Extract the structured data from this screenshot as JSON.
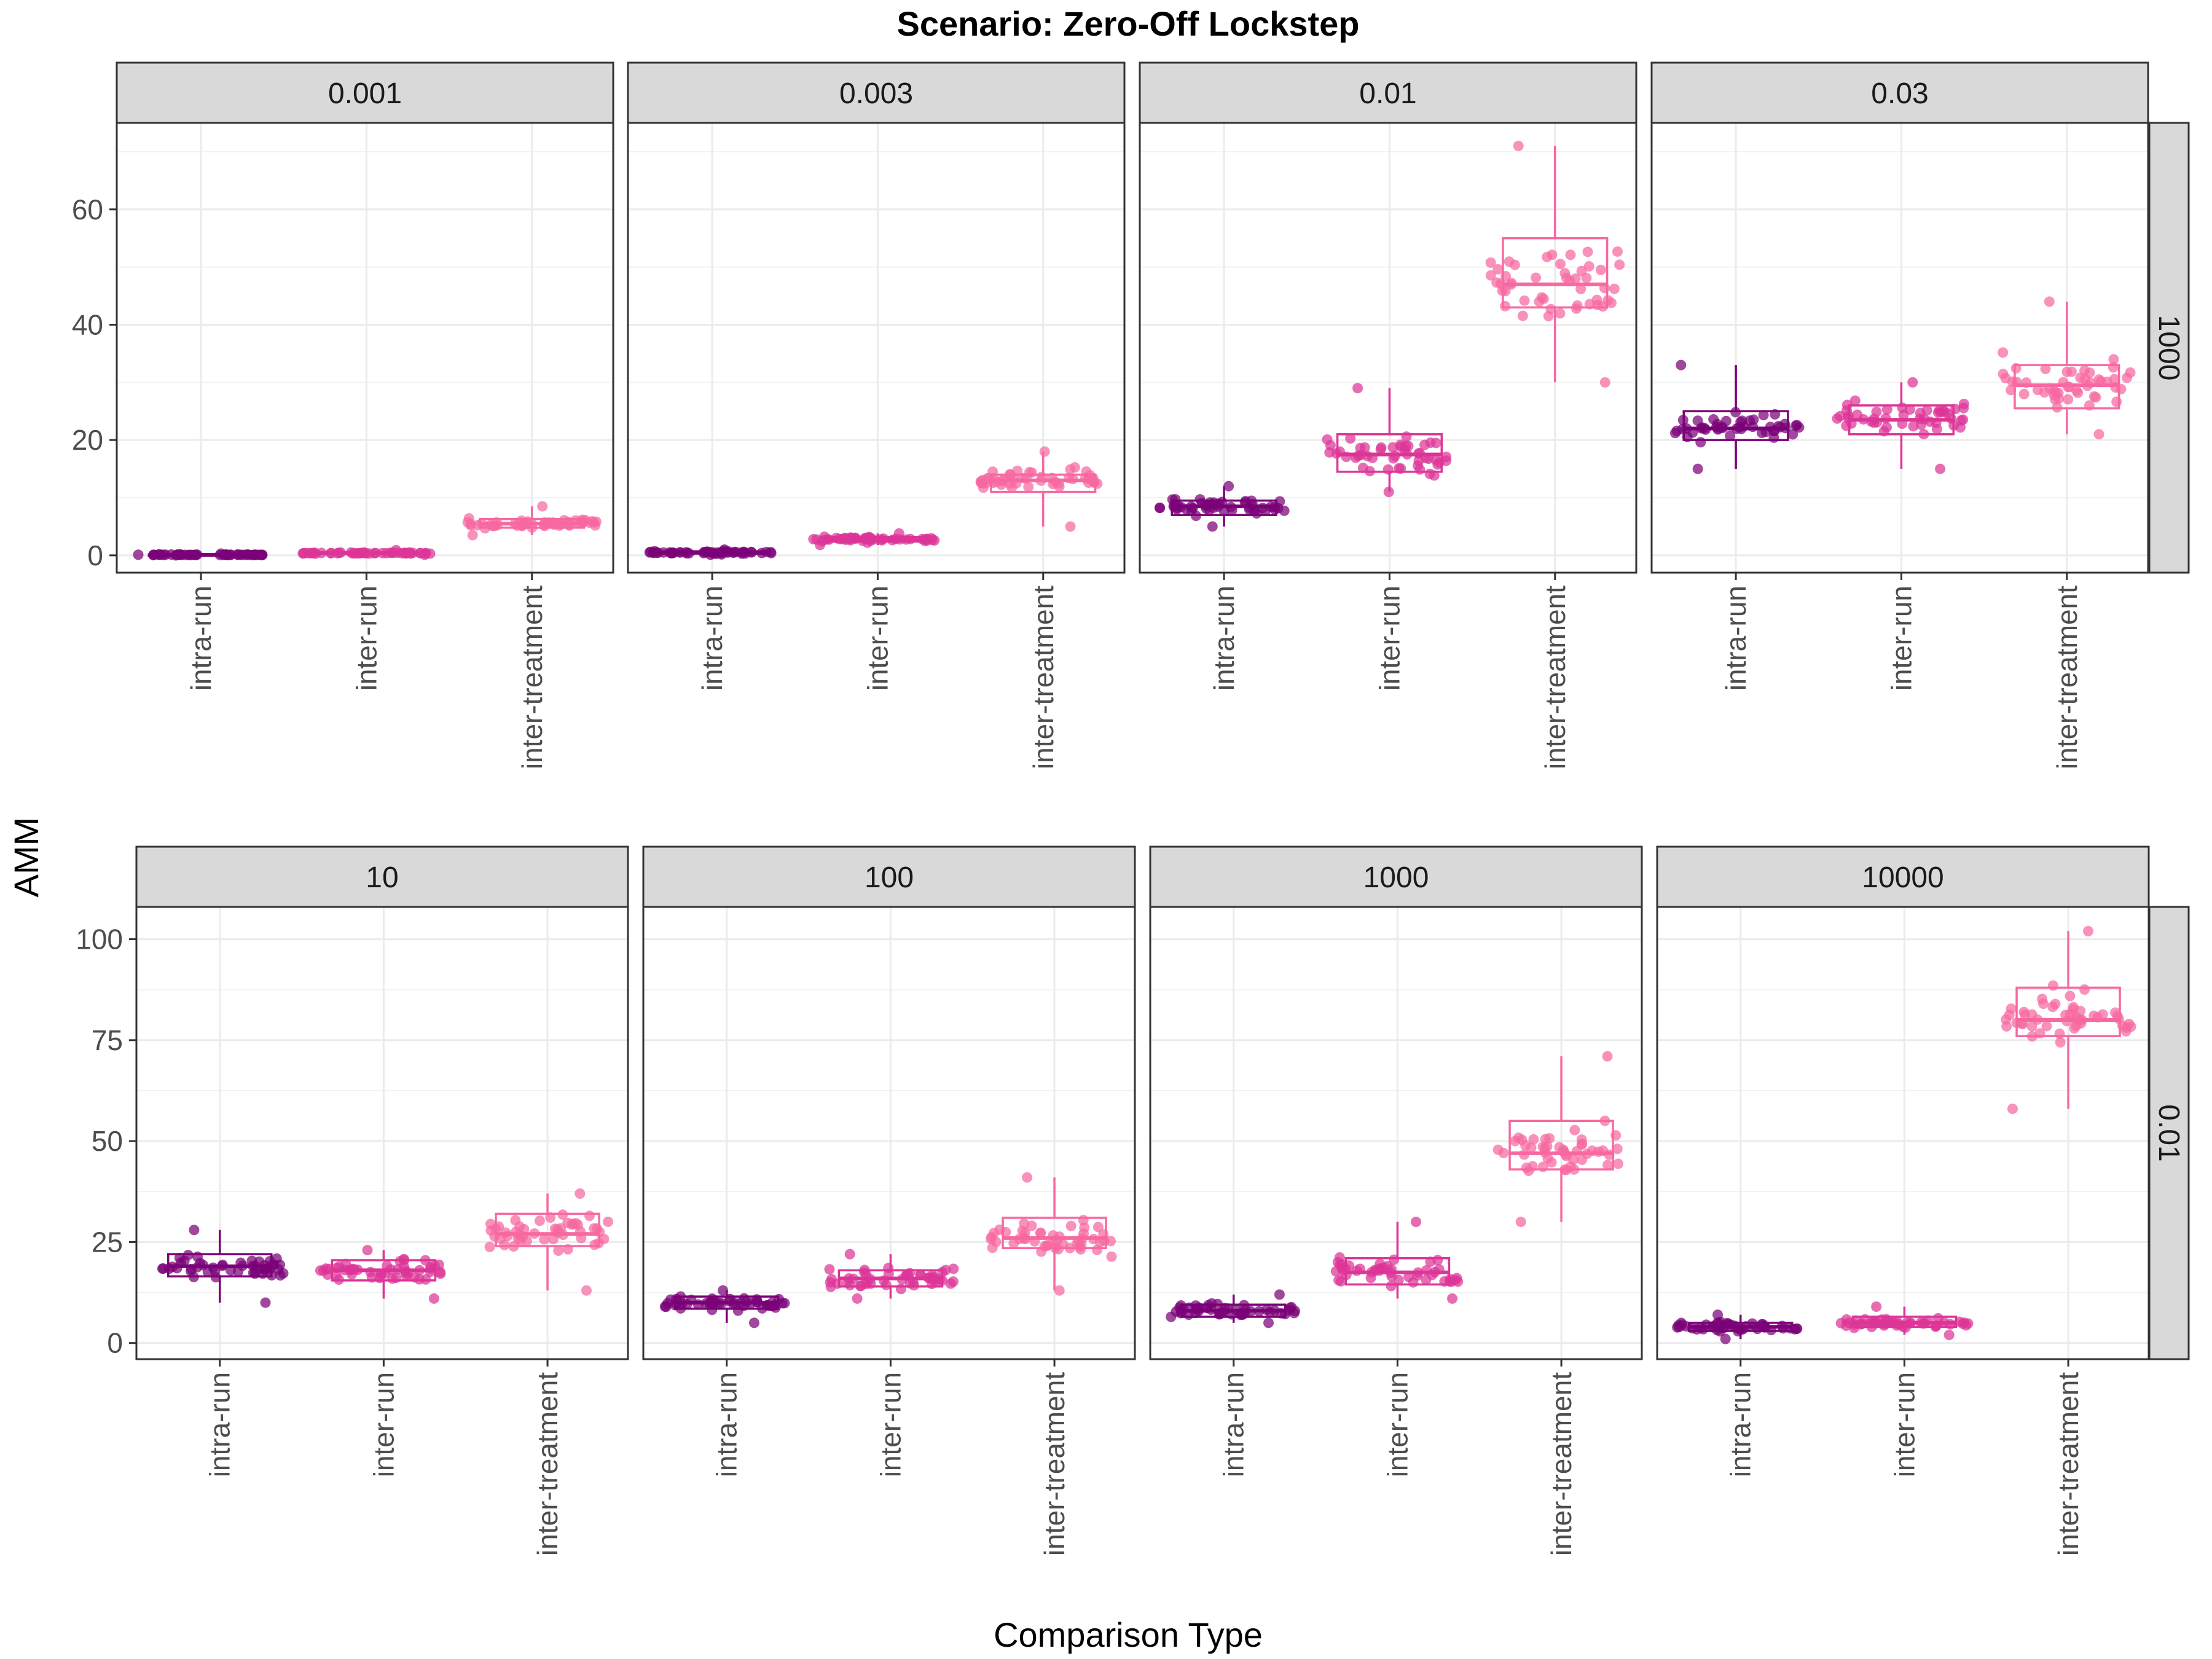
{
  "chart_data": {
    "type": "boxplot-jitter",
    "title": "Scenario: Zero-Off Lockstep",
    "xlabel": "Comparison Type",
    "ylabel": "AMM",
    "categories": [
      "intra-run",
      "inter-run",
      "inter-treatment"
    ],
    "category_colors": {
      "intra-run": "#7a0177",
      "inter-run": "#dd3497",
      "inter-treatment": "#f768a1"
    },
    "grid": true,
    "legend": "none",
    "rows": [
      {
        "strip_label": "1000",
        "ylim": [
          -3,
          75
        ],
        "yticks": [
          0,
          20,
          40,
          60
        ],
        "panels": [
          {
            "strip_label": "0.001",
            "boxes": [
              {
                "category": "intra-run",
                "min": 0,
                "q1": 0.05,
                "median": 0.1,
                "q3": 0.15,
                "max": 0.3
              },
              {
                "category": "inter-run",
                "min": 0.1,
                "q1": 0.3,
                "median": 0.4,
                "q3": 0.5,
                "max": 0.9
              },
              {
                "category": "inter-treatment",
                "min": 3.5,
                "q1": 4.8,
                "median": 5.5,
                "q3": 6.3,
                "max": 8.5
              }
            ]
          },
          {
            "strip_label": "0.003",
            "boxes": [
              {
                "category": "intra-run",
                "min": 0.1,
                "q1": 0.3,
                "median": 0.5,
                "q3": 0.7,
                "max": 1.0
              },
              {
                "category": "inter-run",
                "min": 1.8,
                "q1": 2.4,
                "median": 2.8,
                "q3": 3.2,
                "max": 3.8
              },
              {
                "category": "inter-treatment",
                "min": 5,
                "q1": 11,
                "median": 13,
                "q3": 14,
                "max": 18
              }
            ]
          },
          {
            "strip_label": "0.01",
            "boxes": [
              {
                "category": "intra-run",
                "min": 5,
                "q1": 7,
                "median": 8.5,
                "q3": 9.5,
                "max": 12
              },
              {
                "category": "inter-run",
                "min": 11,
                "q1": 14.5,
                "median": 17.5,
                "q3": 21,
                "max": 29
              },
              {
                "category": "inter-treatment",
                "min": 30,
                "q1": 43,
                "median": 47,
                "q3": 55,
                "max": 71
              }
            ]
          },
          {
            "strip_label": "0.03",
            "boxes": [
              {
                "category": "intra-run",
                "min": 15,
                "q1": 20,
                "median": 22,
                "q3": 25,
                "max": 33
              },
              {
                "category": "inter-run",
                "min": 15,
                "q1": 21,
                "median": 23.5,
                "q3": 26,
                "max": 30
              },
              {
                "category": "inter-treatment",
                "min": 21,
                "q1": 25.5,
                "median": 29.5,
                "q3": 33,
                "max": 44
              }
            ]
          }
        ]
      },
      {
        "strip_label": "0.01",
        "ylim": [
          -4,
          108
        ],
        "yticks": [
          0,
          25,
          50,
          75,
          100
        ],
        "panels": [
          {
            "strip_label": "10",
            "boxes": [
              {
                "category": "intra-run",
                "min": 10,
                "q1": 16.5,
                "median": 19,
                "q3": 22,
                "max": 28
              },
              {
                "category": "inter-run",
                "min": 11,
                "q1": 15.5,
                "median": 18,
                "q3": 20.5,
                "max": 23
              },
              {
                "category": "inter-treatment",
                "min": 13,
                "q1": 24,
                "median": 27,
                "q3": 32,
                "max": 37
              }
            ]
          },
          {
            "strip_label": "100",
            "boxes": [
              {
                "category": "intra-run",
                "min": 5,
                "q1": 8.5,
                "median": 10,
                "q3": 11.5,
                "max": 13
              },
              {
                "category": "inter-run",
                "min": 11,
                "q1": 14,
                "median": 16,
                "q3": 18,
                "max": 22
              },
              {
                "category": "inter-treatment",
                "min": 13,
                "q1": 23.5,
                "median": 26,
                "q3": 31,
                "max": 41
              }
            ]
          },
          {
            "strip_label": "1000",
            "boxes": [
              {
                "category": "intra-run",
                "min": 5,
                "q1": 6.5,
                "median": 8,
                "q3": 9.5,
                "max": 12
              },
              {
                "category": "inter-run",
                "min": 11,
                "q1": 14.5,
                "median": 17.5,
                "q3": 21,
                "max": 30
              },
              {
                "category": "inter-treatment",
                "min": 30,
                "q1": 43,
                "median": 47,
                "q3": 55,
                "max": 71
              }
            ]
          },
          {
            "strip_label": "10000",
            "boxes": [
              {
                "category": "intra-run",
                "min": 1,
                "q1": 3,
                "median": 4,
                "q3": 5,
                "max": 7
              },
              {
                "category": "inter-run",
                "min": 2,
                "q1": 4,
                "median": 5,
                "q3": 6.5,
                "max": 9
              },
              {
                "category": "inter-treatment",
                "min": 58,
                "q1": 76,
                "median": 80,
                "q3": 88,
                "max": 102
              }
            ]
          }
        ]
      }
    ]
  }
}
